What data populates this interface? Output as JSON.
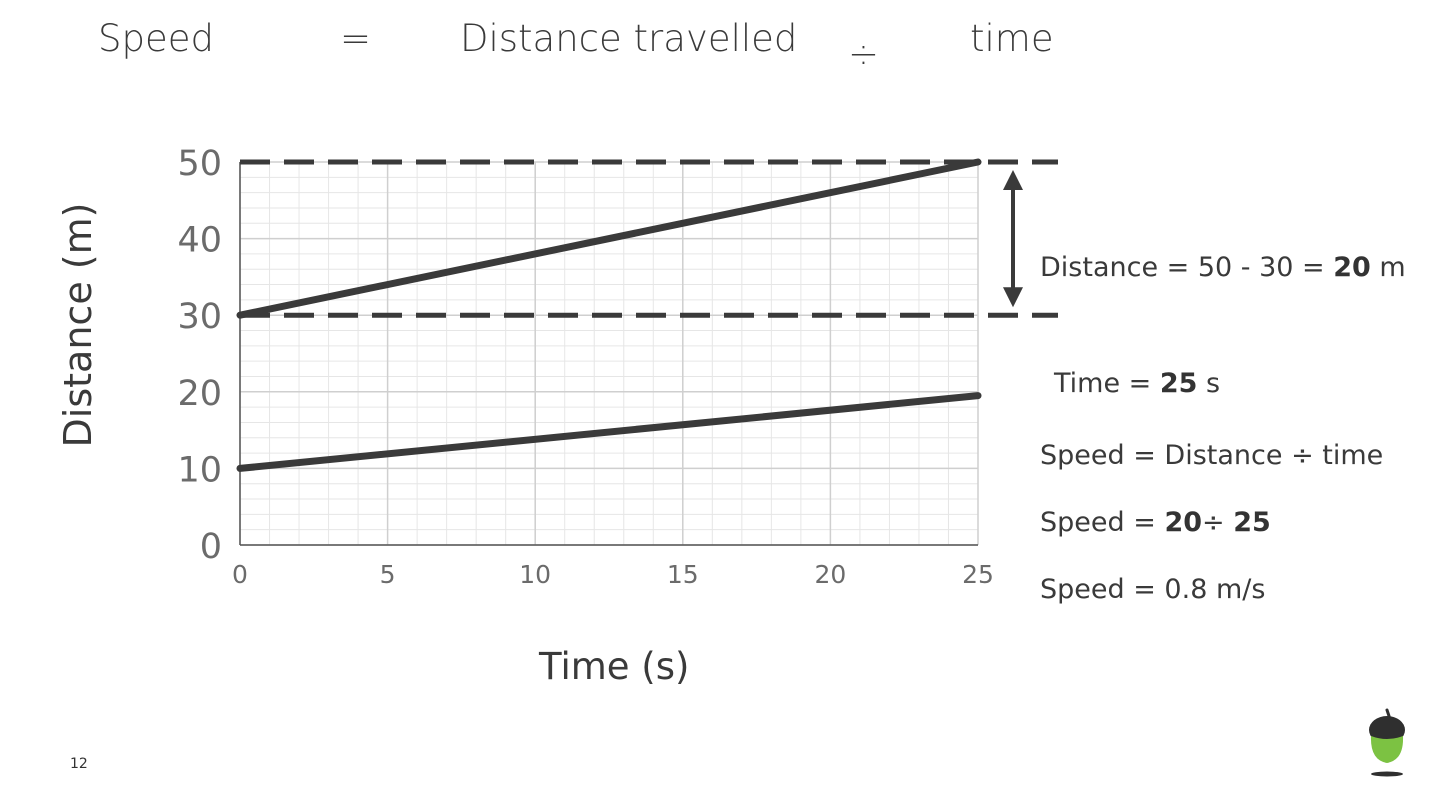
{
  "equation": {
    "speed": "Speed",
    "equals": "=",
    "distance": "Distance travelled",
    "divide": "÷",
    "time": "time"
  },
  "chart_data": {
    "type": "line",
    "xlabel": "Time (s)",
    "ylabel": "Distance (m)",
    "xlim": [
      0,
      25
    ],
    "ylim": [
      0,
      50
    ],
    "xticks": [
      "0",
      "5",
      "10",
      "15",
      "20",
      "25"
    ],
    "yticks": [
      "0",
      "10",
      "20",
      "30",
      "40",
      "50"
    ],
    "grid": true,
    "series": [
      {
        "x": [
          0,
          25
        ],
        "y": [
          30,
          50
        ],
        "color": "#3a3a3a"
      },
      {
        "x": [
          0,
          25
        ],
        "y": [
          10,
          19.5
        ],
        "color": "#3a3a3a"
      }
    ],
    "reference_lines": [
      50,
      30
    ],
    "annotation_range": [
      30,
      50
    ]
  },
  "notes": {
    "distance": {
      "prefix": "Distance = 50 - 30 = ",
      "bold": "20",
      "suffix": " m"
    },
    "time": {
      "prefix": "Time = ",
      "bold": "25",
      "suffix": " s"
    },
    "formula": "Speed = Distance ÷ time",
    "calc": {
      "prefix": "Speed = ",
      "bold1": "20",
      "mid": "÷ ",
      "bold2": "25"
    },
    "result": "Speed = 0.8 m/s"
  },
  "page_number": "12",
  "colors": {
    "text": "#3a3a3a",
    "grid_major": "#cfcfcf",
    "grid_minor": "#e6e6e6",
    "logo_green": "#7cc242",
    "logo_dark": "#2f2f2f"
  }
}
